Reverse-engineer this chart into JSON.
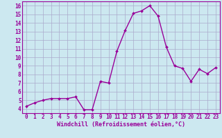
{
  "x": [
    0,
    1,
    2,
    3,
    4,
    5,
    6,
    7,
    8,
    9,
    10,
    11,
    12,
    13,
    14,
    15,
    16,
    17,
    18,
    19,
    20,
    21,
    22,
    23
  ],
  "y": [
    4.3,
    4.7,
    5.0,
    5.2,
    5.2,
    5.2,
    5.4,
    3.9,
    3.9,
    7.2,
    7.0,
    10.7,
    13.1,
    15.1,
    15.4,
    16.0,
    14.8,
    11.2,
    9.0,
    8.7,
    7.2,
    8.6,
    8.1,
    8.8
  ],
  "line_color": "#990099",
  "marker": "D",
  "marker_size": 2.0,
  "line_width": 1.0,
  "bg_color": "#cce8f0",
  "grid_color": "#aaaacc",
  "xlabel": "Windchill (Refroidissement éolien,°C)",
  "xlabel_color": "#990099",
  "tick_color": "#990099",
  "ylim": [
    3.5,
    16.5
  ],
  "xlim": [
    -0.5,
    23.5
  ],
  "yticks": [
    4,
    5,
    6,
    7,
    8,
    9,
    10,
    11,
    12,
    13,
    14,
    15,
    16
  ],
  "xticks": [
    0,
    1,
    2,
    3,
    4,
    5,
    6,
    7,
    8,
    9,
    10,
    11,
    12,
    13,
    14,
    15,
    16,
    17,
    18,
    19,
    20,
    21,
    22,
    23
  ],
  "tick_fontsize": 5.5,
  "xlabel_fontsize": 6.0,
  "grid_linewidth": 0.5,
  "spine_color": "#990099"
}
